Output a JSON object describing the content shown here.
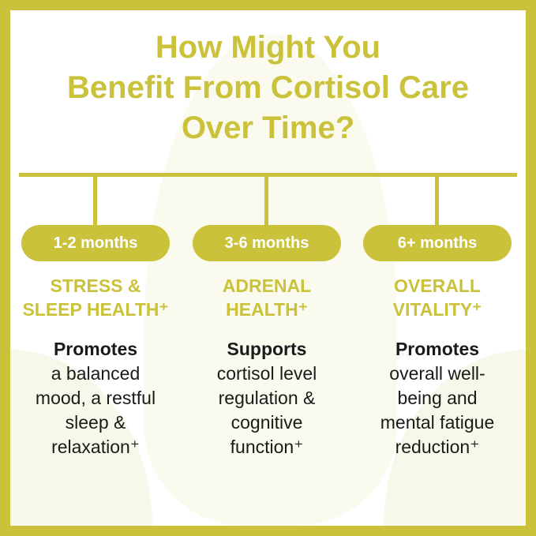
{
  "title": [
    "How Might You",
    "Benefit From Cortisol Care",
    "Over Time?"
  ],
  "colors": {
    "accent": "#c9c23a",
    "text": "#1a1a1a"
  },
  "columns": [
    {
      "period": "1-2 months",
      "heading": [
        "STRESS &",
        "SLEEP HEALTH⁺"
      ],
      "lead": "Promotes",
      "body": [
        "a balanced",
        "mood, a restful",
        "sleep &",
        "relaxation⁺"
      ]
    },
    {
      "period": "3-6 months",
      "heading": [
        "ADRENAL",
        "HEALTH⁺"
      ],
      "lead": "Supports",
      "body": [
        "cortisol level",
        "regulation &",
        "cognitive",
        "function⁺"
      ]
    },
    {
      "period": "6+ months",
      "heading": [
        "OVERALL",
        "VITALITY⁺"
      ],
      "lead": "Promotes",
      "body": [
        "overall well-",
        "being and",
        "mental fatigue",
        "reduction⁺"
      ]
    }
  ]
}
